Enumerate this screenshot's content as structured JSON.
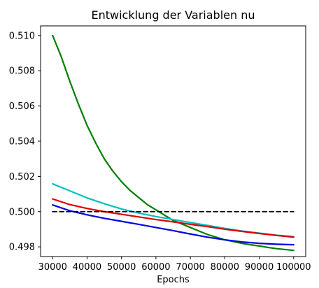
{
  "chart_data": {
    "type": "line",
    "title": "Entwicklung der Variablen nu",
    "xlabel": "Epochs",
    "ylabel": "",
    "xlim": [
      26500,
      103500
    ],
    "ylim": [
      0.49745,
      0.51055
    ],
    "x_ticks": [
      30000,
      40000,
      50000,
      60000,
      70000,
      80000,
      90000,
      100000
    ],
    "x_tick_labels": [
      "30000",
      "40000",
      "50000",
      "60000",
      "70000",
      "80000",
      "90000",
      "100000"
    ],
    "y_ticks": [
      0.498,
      0.5,
      0.502,
      0.504,
      0.506,
      0.508,
      0.51
    ],
    "y_tick_labels": [
      "0.498",
      "0.500",
      "0.502",
      "0.504",
      "0.506",
      "0.508",
      "0.510"
    ],
    "grid": false,
    "series": [
      {
        "color": "#008000",
        "points": [
          [
            30000,
            0.51
          ],
          [
            32500,
            0.5088
          ],
          [
            35000,
            0.5074
          ],
          [
            37500,
            0.5061
          ],
          [
            40000,
            0.5049
          ],
          [
            42500,
            0.5039
          ],
          [
            45000,
            0.503
          ],
          [
            47500,
            0.5023
          ],
          [
            50000,
            0.5017
          ],
          [
            52500,
            0.5012
          ],
          [
            55000,
            0.5008
          ],
          [
            57500,
            0.5004
          ],
          [
            60000,
            0.5001
          ],
          [
            62500,
            0.4998
          ],
          [
            65000,
            0.4995
          ],
          [
            67500,
            0.4993
          ],
          [
            70000,
            0.4991
          ],
          [
            72500,
            0.4989
          ],
          [
            75000,
            0.4987
          ],
          [
            77500,
            0.49855
          ],
          [
            80000,
            0.4984
          ],
          [
            82500,
            0.4983
          ],
          [
            85000,
            0.4982
          ],
          [
            87500,
            0.49812
          ],
          [
            90000,
            0.49805
          ],
          [
            92500,
            0.49797
          ],
          [
            95000,
            0.4979
          ],
          [
            97500,
            0.49785
          ],
          [
            100000,
            0.4978
          ]
        ]
      },
      {
        "color": "#00bfbf",
        "points": [
          [
            30000,
            0.50158
          ],
          [
            35000,
            0.50118
          ],
          [
            40000,
            0.50078
          ],
          [
            45000,
            0.50045
          ],
          [
            50000,
            0.50015
          ],
          [
            55000,
            0.49992
          ],
          [
            60000,
            0.49972
          ],
          [
            65000,
            0.49955
          ],
          [
            70000,
            0.49938
          ],
          [
            75000,
            0.49922
          ],
          [
            80000,
            0.49905
          ],
          [
            85000,
            0.4989
          ],
          [
            90000,
            0.49878
          ],
          [
            95000,
            0.49866
          ],
          [
            100000,
            0.49858
          ]
        ]
      },
      {
        "color": "#e00000",
        "points": [
          [
            30000,
            0.50072
          ],
          [
            35000,
            0.5004
          ],
          [
            40000,
            0.50018
          ],
          [
            45000,
            0.5
          ],
          [
            50000,
            0.49985
          ],
          [
            55000,
            0.4997
          ],
          [
            60000,
            0.49955
          ],
          [
            65000,
            0.49942
          ],
          [
            70000,
            0.49928
          ],
          [
            75000,
            0.49915
          ],
          [
            80000,
            0.499
          ],
          [
            85000,
            0.49888
          ],
          [
            90000,
            0.49876
          ],
          [
            95000,
            0.49865
          ],
          [
            100000,
            0.49855
          ]
        ]
      },
      {
        "color": "#0000e0",
        "points": [
          [
            30000,
            0.50038
          ],
          [
            35000,
            0.50005
          ],
          [
            40000,
            0.49982
          ],
          [
            45000,
            0.49962
          ],
          [
            50000,
            0.49945
          ],
          [
            55000,
            0.49928
          ],
          [
            60000,
            0.4991
          ],
          [
            65000,
            0.49892
          ],
          [
            70000,
            0.49873
          ],
          [
            75000,
            0.49855
          ],
          [
            80000,
            0.4984
          ],
          [
            85000,
            0.49828
          ],
          [
            90000,
            0.4982
          ],
          [
            95000,
            0.49815
          ],
          [
            100000,
            0.49812
          ]
        ]
      },
      {
        "color": "#000000",
        "dashed": true,
        "points": [
          [
            30000,
            0.5
          ],
          [
            100000,
            0.5
          ]
        ]
      }
    ]
  }
}
